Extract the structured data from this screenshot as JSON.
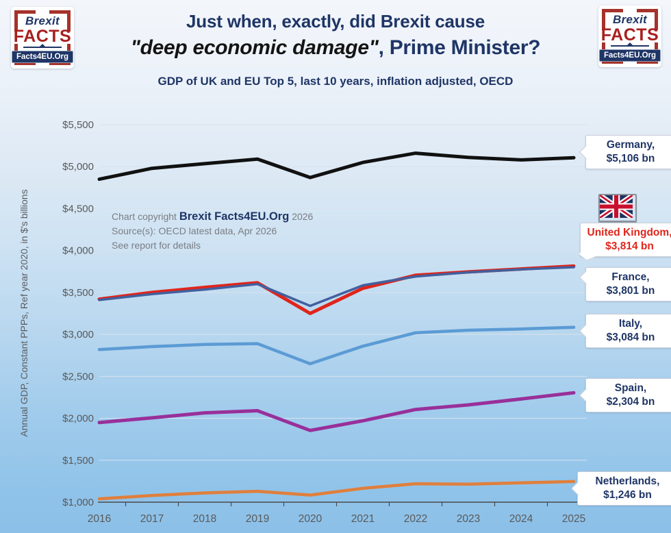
{
  "logo": {
    "line1": "Brexit",
    "line2": "FACTS",
    "banner": "Facts4EU.Org"
  },
  "header": {
    "title_line1": "Just when, exactly, did Brexit cause",
    "title_quote": "\"deep economic damage\"",
    "title_after_quote": ", Prime Minister?",
    "subtitle": "GDP of UK and EU Top 5, last 10 years, inflation adjusted, OECD"
  },
  "annotation": {
    "line1_prefix": "Chart copyright ",
    "line1_brand": "Brexit Facts4EU.Org",
    "line1_suffix": " 2026",
    "line2": "Source(s): OECD latest data, Apr 2026",
    "line3": "See report for details"
  },
  "chart_data": {
    "type": "line",
    "title": "GDP of UK and EU Top 5, last 10 years, inflation adjusted, OECD",
    "xlabel": "",
    "ylabel": "Annual GDP, Constant PPPs, Ref year 2020, in $'s billions",
    "x_labels": [
      "2016",
      "2017",
      "2018",
      "2019",
      "2020",
      "2021",
      "2022",
      "2023",
      "2024",
      "2025"
    ],
    "y_ticks": [
      "$1,000",
      "$1,500",
      "$2,000",
      "$2,500",
      "$3,000",
      "$3,500",
      "$4,000",
      "$4,500",
      "$5,000",
      "$5,500"
    ],
    "ylim": [
      1000,
      5500
    ],
    "y_step": 500,
    "grid": true,
    "legend_position": "right-callouts",
    "axis_color": "#4a4a4a",
    "grid_color": "#d9e2ec",
    "tick_text_color": "#595959",
    "series": [
      {
        "name": "Germany",
        "callout_label": "Germany,",
        "callout_value": "$5,106 bn",
        "color": "#111111",
        "width": 5,
        "values": [
          4850,
          4980,
          5035,
          5090,
          4870,
          5050,
          5160,
          5110,
          5080,
          5106
        ]
      },
      {
        "name": "United Kingdom",
        "callout_label": "United Kingdom,",
        "callout_value": "$3,814 bn",
        "color": "#e0251b",
        "width": 5,
        "values": [
          3420,
          3500,
          3560,
          3615,
          3250,
          3550,
          3705,
          3745,
          3780,
          3814
        ]
      },
      {
        "name": "France",
        "callout_label": "France,",
        "callout_value": "$3,801 bn",
        "color": "#41609f",
        "width": 3.5,
        "values": [
          3410,
          3480,
          3535,
          3600,
          3340,
          3585,
          3690,
          3740,
          3775,
          3801
        ]
      },
      {
        "name": "Italy",
        "callout_label": "Italy,",
        "callout_value": "$3,084 bn",
        "color": "#5b9bd5",
        "width": 4.5,
        "values": [
          2820,
          2855,
          2880,
          2890,
          2650,
          2860,
          3020,
          3050,
          3065,
          3084
        ]
      },
      {
        "name": "Spain",
        "callout_label": "Spain,",
        "callout_value": "$2,304 bn",
        "color": "#98309a",
        "width": 5,
        "values": [
          1950,
          2005,
          2065,
          2090,
          1855,
          1970,
          2105,
          2160,
          2230,
          2304
        ]
      },
      {
        "name": "Netherlands",
        "callout_label": "Netherlands,",
        "callout_value": "$1,246 bn",
        "color": "#e07f3c",
        "width": 4.5,
        "values": [
          1040,
          1080,
          1110,
          1130,
          1085,
          1165,
          1220,
          1215,
          1230,
          1246
        ]
      }
    ]
  }
}
